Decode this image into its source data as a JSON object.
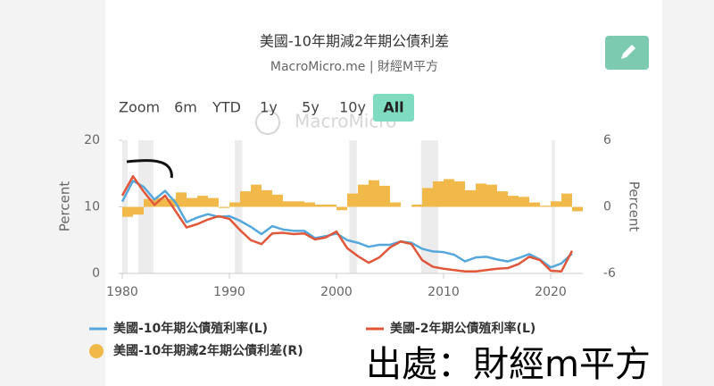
{
  "chart_data": {
    "type": "line",
    "title": "美國-10年期減2年期公債利差",
    "subtitle": "MacroMicro.me | 財經M平方",
    "watermark": "MacroMicro",
    "ylabel": "Percent",
    "y2label": "Percent",
    "x": [
      1980,
      1981,
      1982,
      1983,
      1984,
      1985,
      1986,
      1987,
      1988,
      1989,
      1990,
      1991,
      1992,
      1993,
      1994,
      1995,
      1996,
      1997,
      1998,
      1999,
      2000,
      2001,
      2002,
      2003,
      2004,
      2005,
      2006,
      2007,
      2008,
      2009,
      2010,
      2011,
      2012,
      2013,
      2014,
      2015,
      2016,
      2017,
      2018,
      2019,
      2020,
      2021,
      2022
    ],
    "xlim": [
      1980,
      2023
    ],
    "xticks": [
      1980,
      1990,
      2000,
      2010,
      2020
    ],
    "ylim": [
      0,
      20
    ],
    "yticks": [
      0,
      10,
      20
    ],
    "y2lim": [
      -6,
      6
    ],
    "y2ticks": [
      -6,
      0,
      6
    ],
    "shaded_x_ranges": [
      [
        1980,
        1980.5
      ],
      [
        1981.5,
        1982.9
      ],
      [
        1990.5,
        1991.2
      ],
      [
        2001.2,
        2001.9
      ],
      [
        2007.9,
        2009.5
      ],
      [
        2020.1,
        2020.4
      ]
    ],
    "series": [
      {
        "name": "美國-10年期公債殖利率(L)",
        "color": "#56a8dc",
        "type": "line",
        "values": [
          10.8,
          13.9,
          13.0,
          11.1,
          12.4,
          10.6,
          7.7,
          8.4,
          8.9,
          8.5,
          8.6,
          7.9,
          7.0,
          5.9,
          7.1,
          6.6,
          6.4,
          6.4,
          5.3,
          5.6,
          6.0,
          5.0,
          4.6,
          4.0,
          4.3,
          4.3,
          4.8,
          4.6,
          3.7,
          3.3,
          3.2,
          2.8,
          1.8,
          2.4,
          2.5,
          2.1,
          1.8,
          2.3,
          2.9,
          2.1,
          0.9,
          1.5,
          3.0
        ]
      },
      {
        "name": "美國-2年期公債殖利率(L)",
        "color": "#e0573a",
        "type": "line",
        "values": [
          11.7,
          14.6,
          12.3,
          10.3,
          11.7,
          9.3,
          6.9,
          7.4,
          8.1,
          8.6,
          8.2,
          6.5,
          5.0,
          4.4,
          6.0,
          6.1,
          5.9,
          6.0,
          5.1,
          5.4,
          6.3,
          3.8,
          2.6,
          1.6,
          2.4,
          3.9,
          4.8,
          4.4,
          2.0,
          1.0,
          0.7,
          0.5,
          0.3,
          0.3,
          0.5,
          0.7,
          0.8,
          1.4,
          2.5,
          2.0,
          0.4,
          0.3,
          3.4
        ]
      },
      {
        "name": "美國-10年期減2年期公債利差(R)",
        "color": "#f0b94a",
        "type": "area",
        "axis": "y2",
        "values": [
          -0.9,
          -0.7,
          0.7,
          0.8,
          0.7,
          1.3,
          0.8,
          1.0,
          0.8,
          -0.1,
          0.4,
          1.4,
          2.0,
          1.5,
          1.1,
          0.5,
          0.5,
          0.4,
          0.2,
          0.2,
          -0.3,
          1.2,
          2.0,
          2.4,
          1.9,
          0.4,
          0.0,
          0.2,
          1.7,
          2.3,
          2.5,
          2.3,
          1.5,
          2.1,
          2.0,
          1.4,
          1.0,
          0.9,
          0.4,
          0.1,
          0.5,
          1.2,
          -0.4
        ]
      }
    ]
  },
  "toolbar": {
    "label": "Zoom",
    "buttons": [
      "6m",
      "YTD",
      "1y",
      "5y",
      "10y",
      "All"
    ]
  },
  "source_overlay": "出處：財經m平方"
}
